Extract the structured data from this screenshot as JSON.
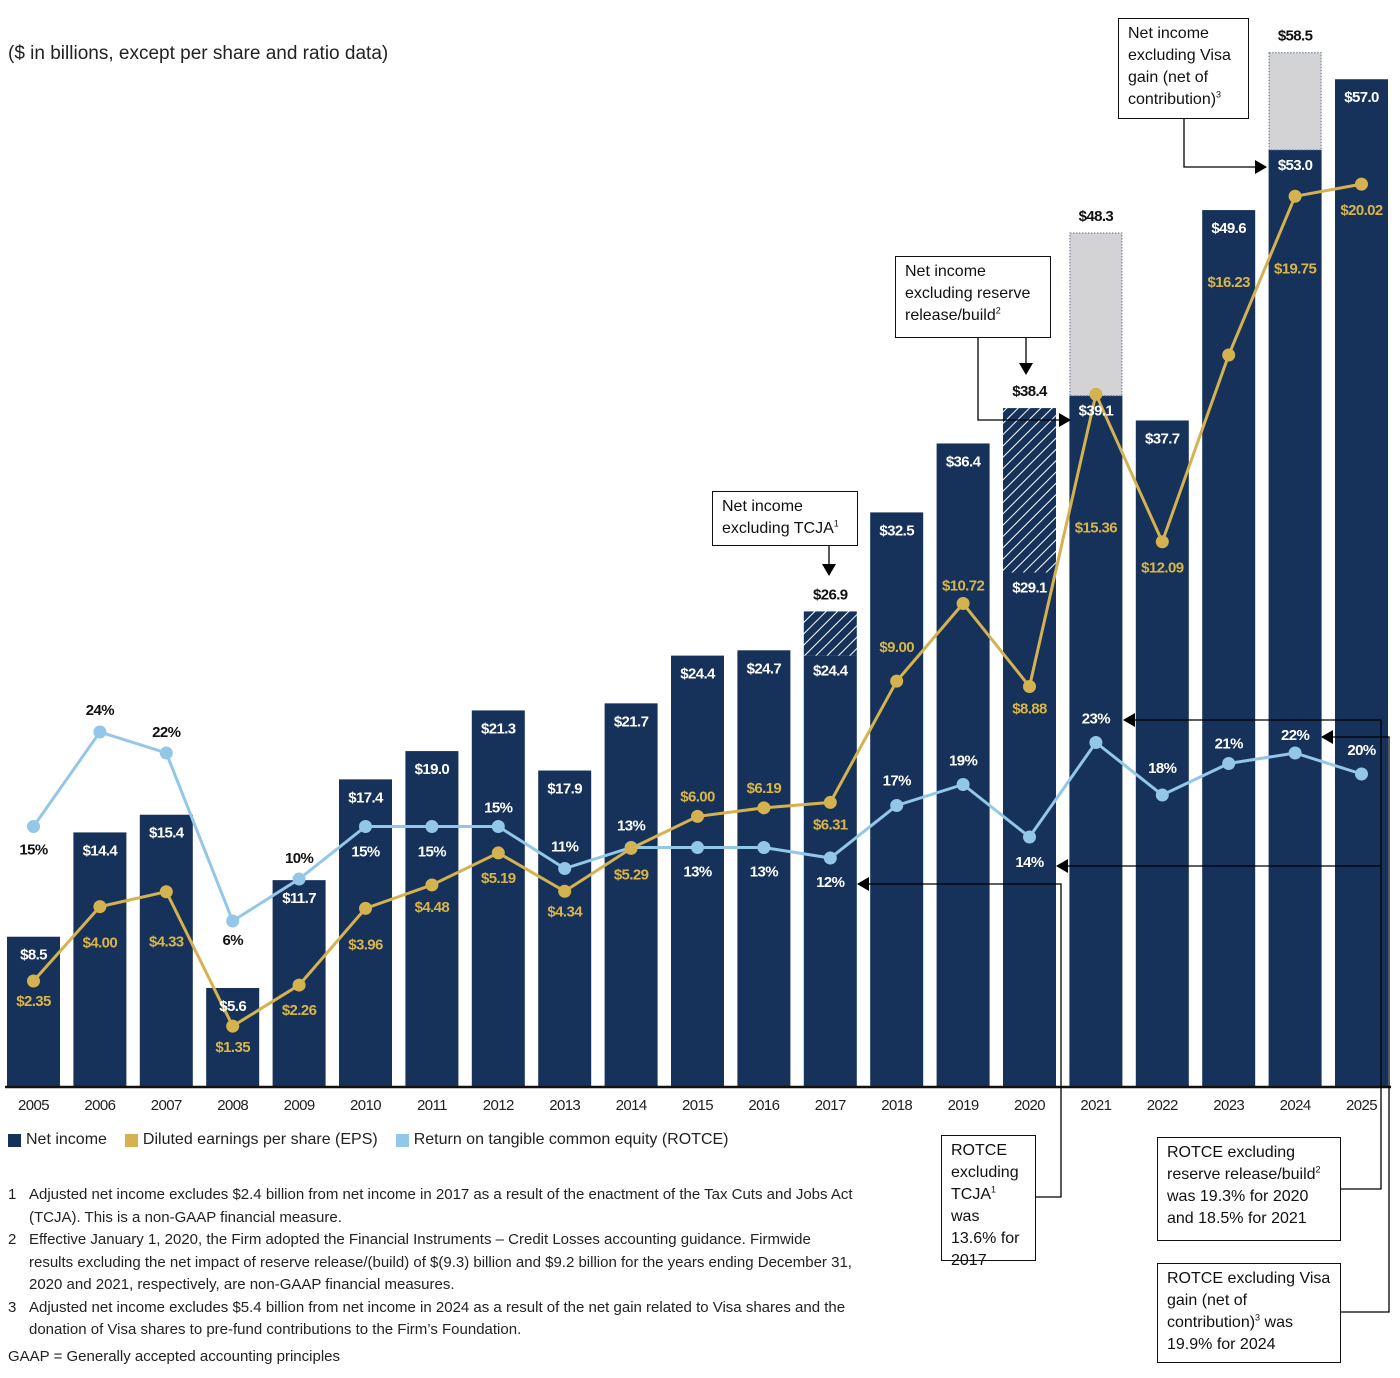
{
  "subtitle": "($ in billions, except per share and ratio data)",
  "colors": {
    "net_income": "#17325a",
    "eps": "#d4b24f",
    "eps_label": "#d9b548",
    "rotce": "#93c7e7",
    "adjustment_gray": "#d3d3d6"
  },
  "legend": [
    {
      "label": "Net income",
      "color": "#17325a"
    },
    {
      "label": "Diluted earnings per share (EPS)",
      "color": "#d4b24f"
    },
    {
      "label": "Return on tangible common equity (ROTCE)",
      "color": "#93c7e7"
    }
  ],
  "annotations": {
    "ni_tcja": {
      "text": "Net income excluding TCJA",
      "sup": "1"
    },
    "ni_reserve": {
      "text": "Net income excluding reserve release/build",
      "sup": "2"
    },
    "ni_visa": {
      "text": "Net income excluding Visa gain (net of contribution)",
      "sup": "3"
    },
    "rotce_tcja": {
      "text_a": "ROTCE excluding TCJA",
      "sup": "1",
      "text_b": "was 13.6% for 2017"
    },
    "rotce_reserve": {
      "text_a": "ROTCE excluding reserve release/build",
      "sup": "2",
      "text_b": "was 19.3% for 2020 and 18.5% for 2021"
    },
    "rotce_visa": {
      "text_a": "ROTCE excluding Visa gain (net of contribution)",
      "sup": "3",
      "text_b": "was 19.9% for 2024"
    }
  },
  "footnotes": [
    {
      "num": "1",
      "text": "Adjusted net income excludes $2.4 billion from net income in 2017 as a result of the enactment of the Tax Cuts and Jobs Act (TCJA). This is a non-GAAP financial measure."
    },
    {
      "num": "2",
      "text": "Effective January 1, 2020, the Firm adopted the Financial Instruments – Credit Losses accounting guidance. Firmwide results excluding the net impact of reserve release/(build) of $(9.3) billion and $9.2 billion for the years ending December 31, 2020 and 2021, respectively, are non-GAAP financial measures."
    },
    {
      "num": "3",
      "text": "Adjusted net income excludes $5.4 billion from net income in 2024 as a result of the net gain related to Visa shares and the donation of Visa shares to pre-fund contributions to the Firm’s Foundation."
    }
  ],
  "gaap_note": "GAAP = Generally accepted accounting principles",
  "chart_data": {
    "type": "bar",
    "title": "",
    "subtitle": "($ in billions, except per share and ratio data)",
    "categories": [
      "2005",
      "2006",
      "2007",
      "2008",
      "2009",
      "2010",
      "2011",
      "2012",
      "2013",
      "2014",
      "2015",
      "2016",
      "2017",
      "2018",
      "2019",
      "2020",
      "2021",
      "2022",
      "2023",
      "2024",
      "2025"
    ],
    "grid": false,
    "legend_position": "bottom-left",
    "series": [
      {
        "name": "Net income",
        "type": "bar",
        "unit": "$B",
        "values": [
          8.5,
          14.4,
          15.4,
          5.6,
          11.7,
          17.4,
          19.0,
          21.3,
          17.9,
          21.7,
          24.4,
          24.7,
          24.4,
          32.5,
          36.4,
          29.1,
          48.3,
          37.7,
          49.6,
          58.5,
          57.0
        ]
      },
      {
        "name": "Diluted earnings per share (EPS)",
        "type": "line",
        "unit": "$",
        "values": [
          2.35,
          4.0,
          4.33,
          1.35,
          2.26,
          3.96,
          4.48,
          5.19,
          4.34,
          5.29,
          6.0,
          6.19,
          6.31,
          9.0,
          10.72,
          8.88,
          15.36,
          12.09,
          16.23,
          19.75,
          20.02
        ]
      },
      {
        "name": "Return on tangible common equity (ROTCE)",
        "type": "line",
        "unit": "%",
        "values": [
          15,
          24,
          22,
          6,
          10,
          15,
          15,
          15,
          11,
          13,
          13,
          13,
          12,
          17,
          19,
          14,
          23,
          18,
          21,
          22,
          20
        ]
      }
    ],
    "adjusted_net_income": [
      {
        "year": "2017",
        "value": 26.9,
        "style": "hatched"
      },
      {
        "year": "2020",
        "value": 38.4,
        "style": "hatched"
      },
      {
        "year": "2021",
        "value": 39.1,
        "style": "gray-dotted"
      },
      {
        "year": "2024",
        "value": 53.0,
        "style": "gray-dotted"
      }
    ]
  }
}
